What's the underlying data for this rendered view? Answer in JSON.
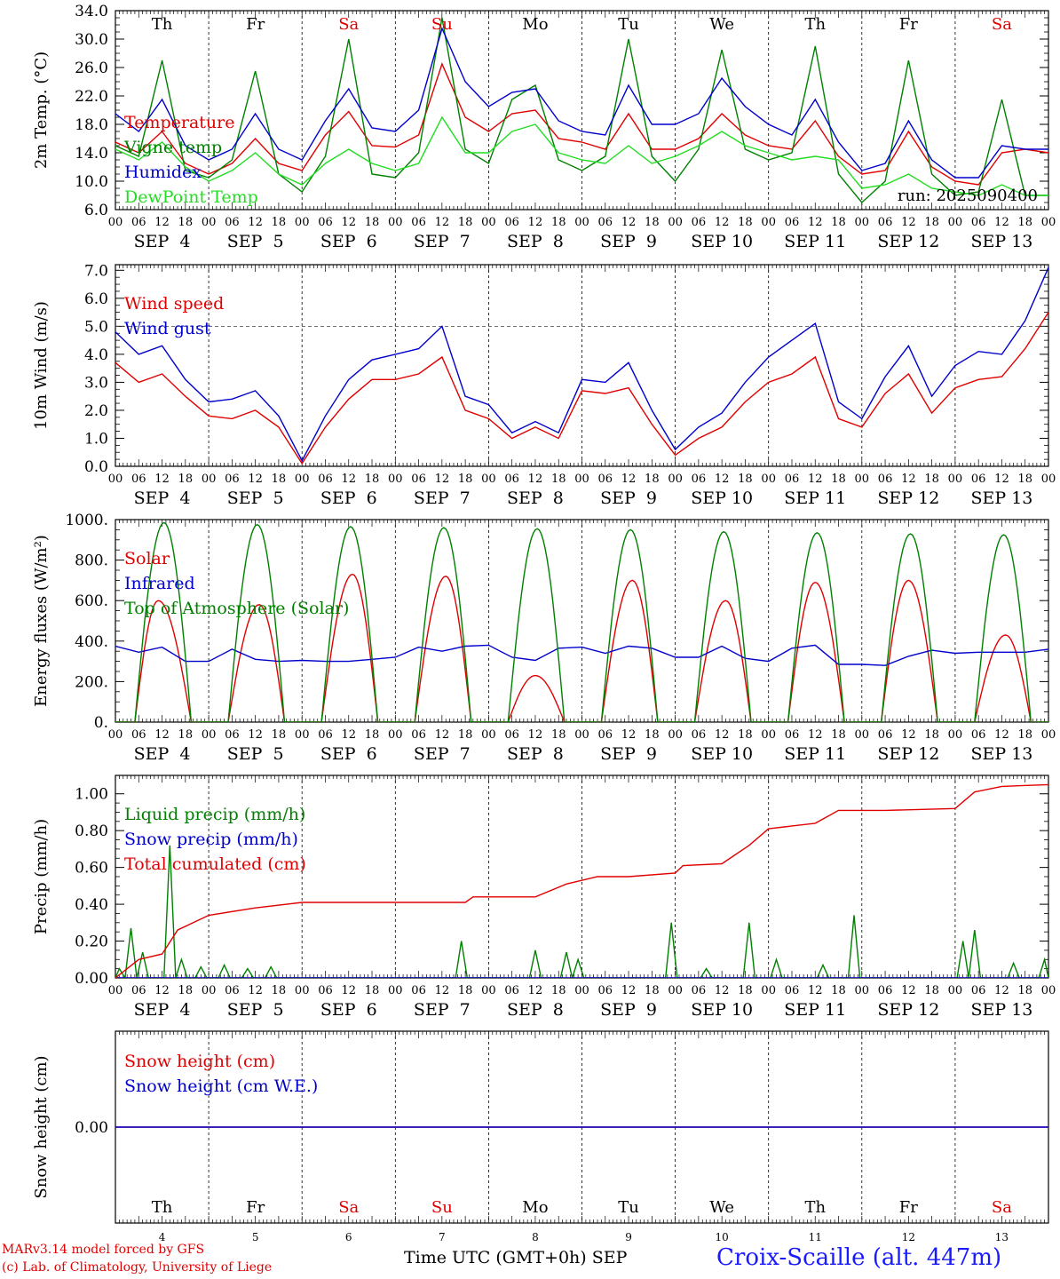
{
  "chart_data": {
    "type": "line",
    "day_tick_labels": [
      "00",
      "06",
      "12",
      "18"
    ],
    "end_tick_label": "00",
    "date_labels": [
      "SEP  4",
      "SEP  5",
      "SEP  6",
      "SEP  7",
      "SEP  8",
      "SEP  9",
      "SEP 10",
      "SEP 11",
      "SEP 12",
      "SEP 13"
    ],
    "weekdays": [
      {
        "label": "Th",
        "color": "#000000"
      },
      {
        "label": "Fr",
        "color": "#000000"
      },
      {
        "label": "Sa",
        "color": "#e00000"
      },
      {
        "label": "Su",
        "color": "#e00000"
      },
      {
        "label": "Mo",
        "color": "#000000"
      },
      {
        "label": "Tu",
        "color": "#000000"
      },
      {
        "label": "We",
        "color": "#000000"
      },
      {
        "label": "Th",
        "color": "#000000"
      },
      {
        "label": "Fr",
        "color": "#000000"
      },
      {
        "label": "Sa",
        "color": "#e00000"
      }
    ],
    "bottom_day_numbers": [
      "4",
      "5",
      "6",
      "7",
      "8",
      "9",
      "10",
      "11",
      "12",
      "13"
    ],
    "panels": [
      {
        "ylabel": "2m Temp. (°C)",
        "ylim": [
          6,
          34
        ],
        "yticks": [
          "6.0",
          "10.0",
          "14.0",
          "18.0",
          "22.0",
          "26.0",
          "30.0",
          "34.0"
        ],
        "ytick_values": [
          6,
          10,
          14,
          18,
          22,
          26,
          30,
          34
        ],
        "weekday_row": true,
        "annotation": "run: 2025090400",
        "x_hours": [
          0,
          6,
          12,
          18,
          24,
          30,
          36,
          42,
          48,
          54,
          60,
          66,
          72,
          78,
          84,
          90,
          96,
          102,
          108,
          114,
          120,
          126,
          132,
          138,
          144,
          150,
          156,
          162,
          168,
          174,
          180,
          186,
          192,
          198,
          204,
          210,
          216,
          222,
          228,
          234,
          240
        ],
        "series": [
          {
            "name": "Temperature",
            "color": "#e00000",
            "values": [
              15.5,
              14.0,
              17.0,
              12.5,
              11.0,
              12.5,
              16.0,
              12.5,
              11.5,
              16.5,
              19.8,
              15.0,
              14.8,
              16.5,
              26.5,
              19.0,
              17.0,
              19.5,
              20.0,
              16.0,
              15.5,
              14.5,
              19.5,
              14.5,
              14.5,
              16.0,
              19.5,
              16.5,
              15.0,
              14.5,
              18.5,
              13.5,
              11.0,
              11.5,
              17.0,
              12.0,
              10.0,
              9.5,
              14.0,
              14.5,
              14.0
            ]
          },
          {
            "name": "Vigne temp",
            "color": "#008000",
            "values": [
              15.0,
              13.5,
              27.0,
              11.5,
              10.5,
              13.0,
              25.5,
              11.0,
              8.5,
              13.5,
              30.0,
              11.0,
              10.5,
              14.0,
              33.0,
              14.5,
              12.5,
              21.5,
              23.5,
              13.0,
              11.5,
              13.5,
              30.0,
              13.5,
              10.0,
              14.5,
              28.5,
              14.5,
              13.0,
              14.0,
              29.0,
              11.0,
              7.0,
              10.0,
              27.0,
              11.0,
              8.0,
              8.5,
              21.5,
              8.0,
              8.0
            ]
          },
          {
            "name": "Humidex",
            "color": "#0000cc",
            "values": [
              19.5,
              17.0,
              21.5,
              15.0,
              13.0,
              14.5,
              19.5,
              14.5,
              13.0,
              18.5,
              23.0,
              17.5,
              17.0,
              20.0,
              31.5,
              24.0,
              20.5,
              22.5,
              23.0,
              18.5,
              17.0,
              16.5,
              23.5,
              18.0,
              18.0,
              19.5,
              24.5,
              20.5,
              18.0,
              16.5,
              21.5,
              15.5,
              11.5,
              12.5,
              18.5,
              13.0,
              10.5,
              10.5,
              15.0,
              14.5,
              14.5
            ]
          },
          {
            "name": "DewPoint Temp",
            "color": "#22dd22",
            "values": [
              14.5,
              13.0,
              15.5,
              12.0,
              10.0,
              11.5,
              14.0,
              11.0,
              9.5,
              12.5,
              14.5,
              12.5,
              11.5,
              12.5,
              19.0,
              14.0,
              14.0,
              17.0,
              18.0,
              14.0,
              13.0,
              12.5,
              15.0,
              12.5,
              13.5,
              15.0,
              17.0,
              15.0,
              14.0,
              13.0,
              13.5,
              13.0,
              9.0,
              9.5,
              11.0,
              9.0,
              8.5,
              8.0,
              9.5,
              8.0,
              8.0
            ]
          }
        ]
      },
      {
        "ylabel": "10m Wind (m/s)",
        "ylim": [
          0,
          7.2
        ],
        "yticks": [
          "0.0",
          "1.0",
          "2.0",
          "3.0",
          "4.0",
          "5.0",
          "6.0",
          "7.0"
        ],
        "ytick_values": [
          0,
          1,
          2,
          3,
          4,
          5,
          6,
          7
        ],
        "dashed_reference": 5.0,
        "series": [
          {
            "name": "Wind speed",
            "color": "#e00000",
            "values": [
              3.7,
              3.0,
              3.3,
              2.5,
              1.8,
              1.7,
              2.0,
              1.4,
              0.1,
              1.4,
              2.4,
              3.1,
              3.1,
              3.3,
              3.9,
              2.0,
              1.7,
              1.0,
              1.4,
              1.0,
              2.7,
              2.6,
              2.8,
              1.5,
              0.4,
              1.0,
              1.4,
              2.3,
              3.0,
              3.3,
              3.9,
              1.7,
              1.4,
              2.6,
              3.3,
              1.9,
              2.8,
              3.1,
              3.2,
              4.2,
              5.5
            ]
          },
          {
            "name": "Wind gust",
            "color": "#0000cc",
            "values": [
              4.8,
              4.0,
              4.3,
              3.1,
              2.3,
              2.4,
              2.7,
              1.8,
              0.2,
              1.8,
              3.1,
              3.8,
              4.0,
              4.2,
              5.0,
              2.5,
              2.2,
              1.2,
              1.6,
              1.2,
              3.1,
              3.0,
              3.7,
              2.0,
              0.6,
              1.4,
              1.9,
              3.0,
              3.9,
              4.5,
              5.1,
              2.3,
              1.7,
              3.2,
              4.3,
              2.5,
              3.6,
              4.1,
              4.0,
              5.2,
              7.1
            ]
          }
        ]
      },
      {
        "ylabel": "Energy fluxes (W/m²)",
        "ylim": [
          0,
          1000
        ],
        "yticks": [
          "0.",
          "200.",
          "400.",
          "600.",
          "800.",
          "1000."
        ],
        "ytick_values": [
          0,
          200,
          400,
          600,
          800,
          1000
        ],
        "series": [
          {
            "name": "Solar",
            "color": "#e00000",
            "daily_peak": [
              600,
              580,
              730,
              720,
              230,
              700,
              600,
              690,
              700,
              430
            ],
            "daily_peak_hour": [
              11,
              13,
              13,
              13,
              12,
              13,
              13,
              12,
              12,
              13
            ]
          },
          {
            "name": "Infrared",
            "color": "#0000cc",
            "values": [
              375,
              345,
              370,
              300,
              300,
              360,
              310,
              300,
              305,
              300,
              300,
              310,
              320,
              370,
              350,
              375,
              380,
              320,
              305,
              365,
              370,
              340,
              375,
              365,
              320,
              320,
              375,
              315,
              300,
              365,
              380,
              285,
              285,
              280,
              325,
              355,
              340,
              345,
              345,
              345,
              360
            ]
          },
          {
            "name": "Top of Atmosphere (Solar)",
            "color": "#008000",
            "daily_peak": [
              985,
              975,
              965,
              960,
              955,
              950,
              940,
              935,
              930,
              925
            ],
            "daily_peak_hour": [
              12.5,
              12.5,
              12.5,
              12.5,
              12.5,
              12.5,
              12.5,
              12.5,
              12.5,
              12.5
            ]
          }
        ]
      },
      {
        "ylabel": "Precip (mm/h)",
        "ylim": [
          0,
          1.1
        ],
        "yticks": [
          "0.00",
          "0.20",
          "0.40",
          "0.60",
          "0.80",
          "1.00"
        ],
        "ytick_values": [
          0,
          0.2,
          0.4,
          0.6,
          0.8,
          1.0
        ],
        "series": [
          {
            "name": "Liquid precip (mm/h)",
            "color": "#008000",
            "events": [
              [
                1,
                0.05
              ],
              [
                4,
                0.27
              ],
              [
                7,
                0.14
              ],
              [
                11,
                0.0
              ],
              [
                14,
                0.72
              ],
              [
                17,
                0.1
              ],
              [
                22,
                0.06
              ],
              [
                28,
                0.07
              ],
              [
                34,
                0.05
              ],
              [
                40,
                0.06
              ],
              [
                64,
                0.0
              ],
              [
                89,
                0.2
              ],
              [
                108,
                0.15
              ],
              [
                116,
                0.14
              ],
              [
                119,
                0.1
              ],
              [
                143,
                0.3
              ],
              [
                152,
                0.05
              ],
              [
                163,
                0.3
              ],
              [
                170,
                0.1
              ],
              [
                182,
                0.07
              ],
              [
                190,
                0.34
              ],
              [
                218,
                0.2
              ],
              [
                221,
                0.26
              ],
              [
                231,
                0.08
              ],
              [
                239,
                0.1
              ]
            ]
          },
          {
            "name": "Snow precip (mm/h)",
            "color": "#0000cc",
            "values": [
              0
            ]
          },
          {
            "name": "Total cumulated (cm)",
            "color": "#e00000",
            "cumulative": [
              [
                0,
                0.0
              ],
              [
                6,
                0.1
              ],
              [
                12,
                0.13
              ],
              [
                16,
                0.26
              ],
              [
                24,
                0.34
              ],
              [
                36,
                0.38
              ],
              [
                48,
                0.41
              ],
              [
                72,
                0.41
              ],
              [
                90,
                0.41
              ],
              [
                92,
                0.44
              ],
              [
                108,
                0.44
              ],
              [
                116,
                0.51
              ],
              [
                124,
                0.55
              ],
              [
                132,
                0.55
              ],
              [
                144,
                0.57
              ],
              [
                146,
                0.61
              ],
              [
                156,
                0.62
              ],
              [
                163,
                0.72
              ],
              [
                168,
                0.81
              ],
              [
                180,
                0.84
              ],
              [
                186,
                0.91
              ],
              [
                198,
                0.91
              ],
              [
                216,
                0.92
              ],
              [
                221,
                1.01
              ],
              [
                228,
                1.04
              ],
              [
                240,
                1.05
              ]
            ]
          }
        ]
      },
      {
        "ylabel": "Snow height (cm)",
        "ylim": [
          -1,
          1
        ],
        "yticks": [
          "0.00"
        ],
        "ytick_values": [
          0
        ],
        "weekday_row_bottom": true,
        "series": [
          {
            "name": "Snow height (cm)",
            "color": "#e00000",
            "values": [
              0,
              0
            ]
          },
          {
            "name": "Snow height (cm W.E.)",
            "color": "#0000cc",
            "values": [
              0,
              0
            ]
          }
        ]
      }
    ]
  },
  "footer": {
    "model_line": "MARv3.14 model forced by GFS",
    "copyright_line": "(c) Lab. of Climatology, University of Liege",
    "x_axis_title": "Time UTC (GMT+0h) SEP",
    "station": "Croix-Scaille (alt. 447m)"
  }
}
